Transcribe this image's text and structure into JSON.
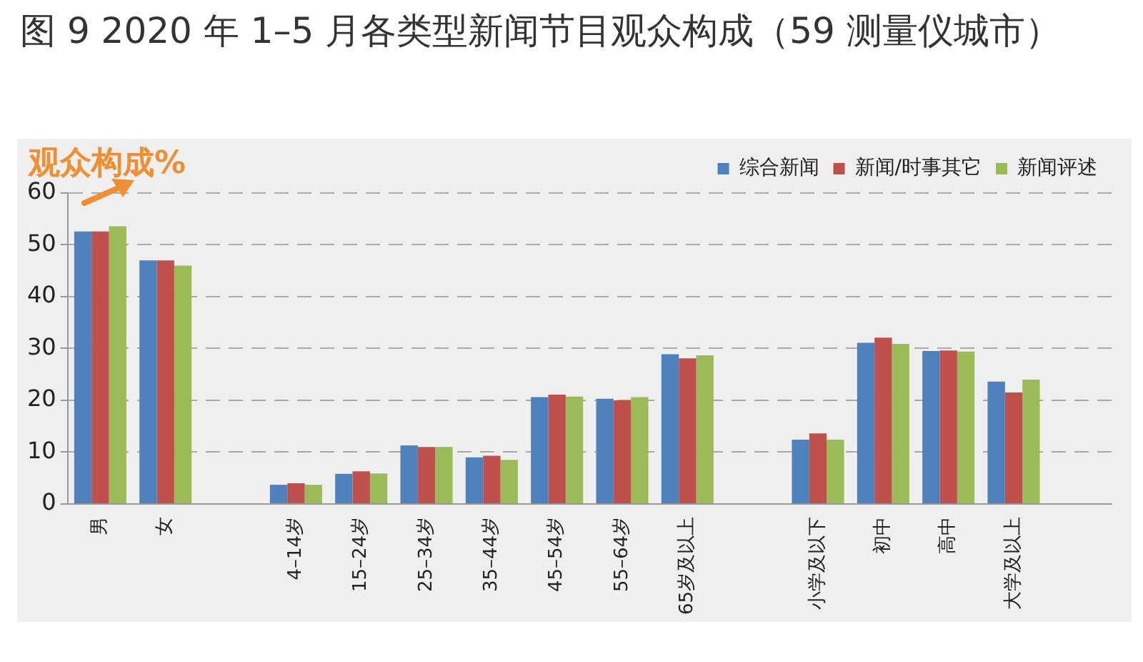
{
  "chart_data": {
    "type": "bar",
    "title": "图 9 2020 年 1–5 月各类型新闻节目观众构成（59 测量仪城市）",
    "ylabel": "观众构成%",
    "categories": [
      "男",
      "女",
      null,
      "4–14岁",
      "15–24岁",
      "25–34岁",
      "35–44岁",
      "45–54岁",
      "55–64岁",
      "65岁及以上",
      null,
      "小学及以下",
      "初中",
      "高中",
      "大学及以上",
      null
    ],
    "series": [
      {
        "name": "综合新闻",
        "color": "#4f81bd",
        "values": [
          52.6,
          47.0,
          null,
          3.7,
          5.8,
          11.3,
          9.0,
          20.6,
          20.3,
          28.9,
          null,
          12.4,
          31.1,
          29.5,
          23.6,
          null
        ]
      },
      {
        "name": "新闻/时事其它",
        "color": "#c0504d",
        "values": [
          52.6,
          47.0,
          null,
          4.0,
          6.3,
          11.0,
          9.3,
          21.1,
          20.0,
          28.1,
          null,
          13.6,
          32.1,
          29.6,
          21.5,
          null
        ]
      },
      {
        "name": "新闻评述",
        "color": "#9bbb59",
        "values": [
          53.6,
          46.0,
          null,
          3.7,
          5.9,
          11.0,
          8.5,
          20.7,
          20.6,
          28.7,
          null,
          12.4,
          30.9,
          29.4,
          24.0,
          null
        ]
      }
    ],
    "ylim": [
      0,
      60
    ],
    "yticks": [
      0,
      10,
      20,
      30,
      40,
      50,
      60
    ],
    "grid": "y",
    "legend": "top right"
  }
}
